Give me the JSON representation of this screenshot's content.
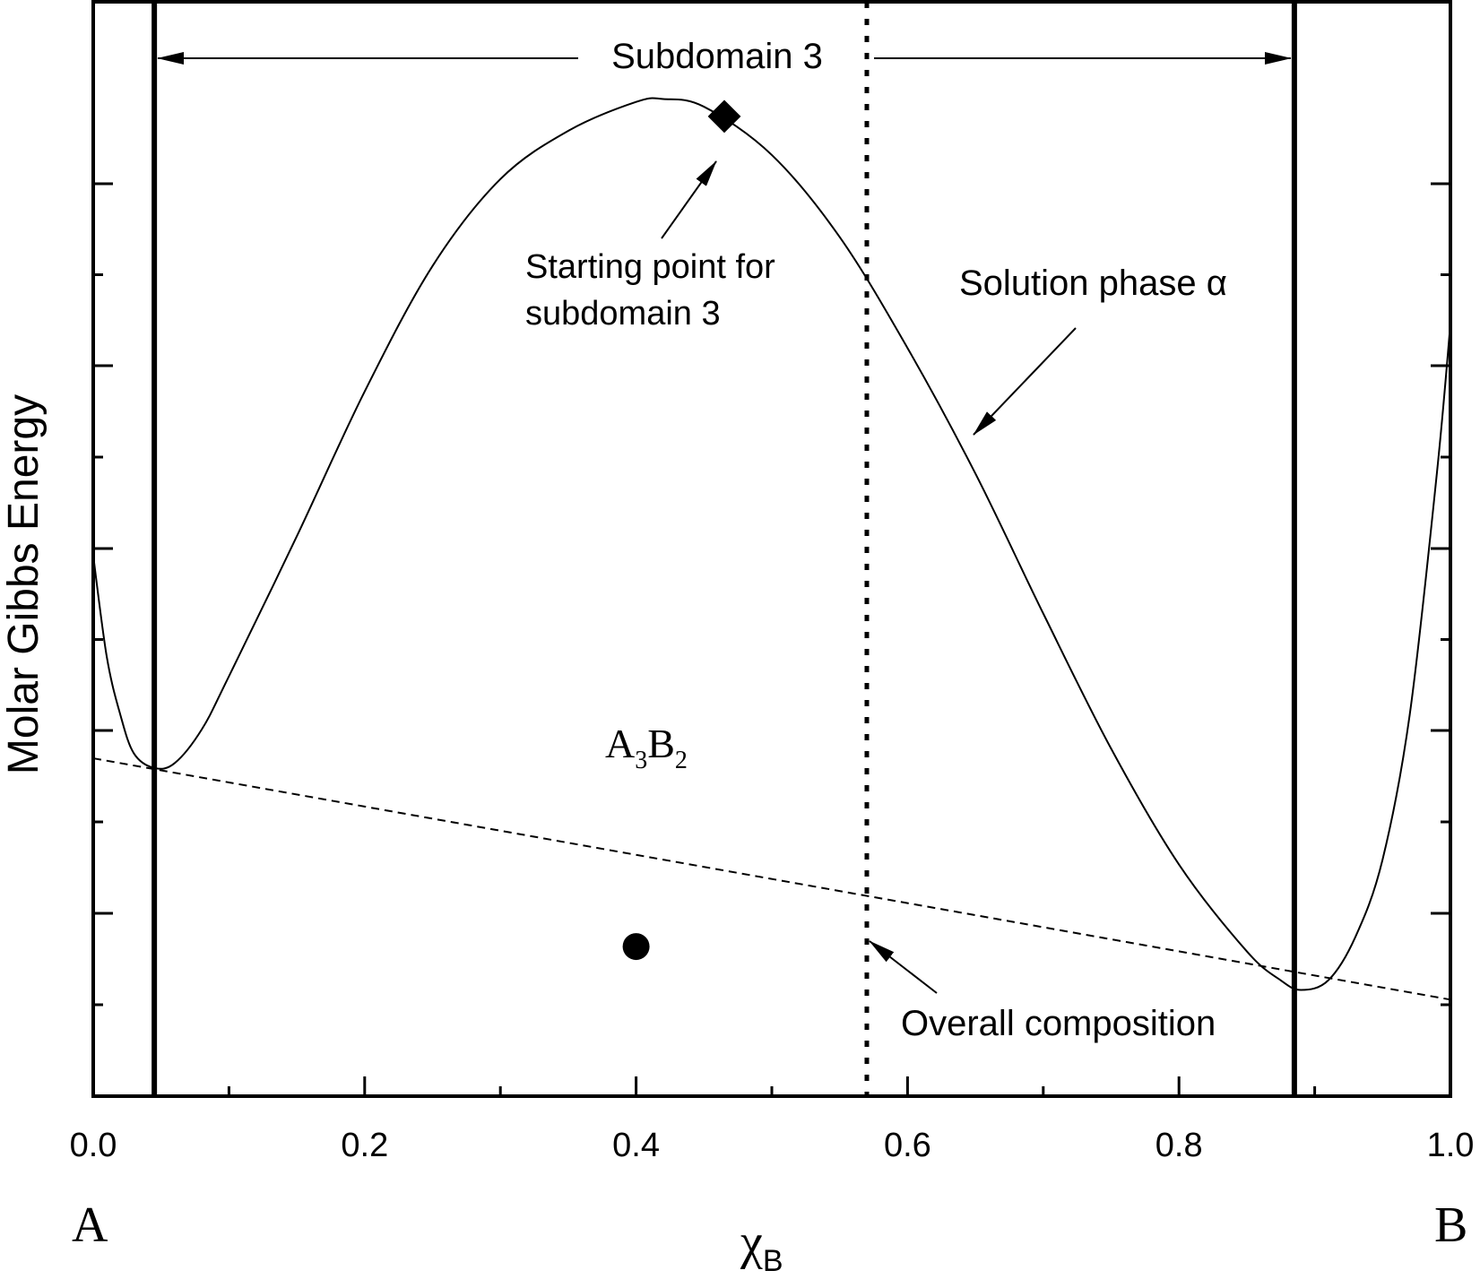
{
  "chart_data": {
    "type": "line",
    "title": "",
    "xlabel": "χ",
    "xlabel_sub": "B",
    "ylabel": "Molar Gibbs Energy",
    "xlim": [
      0.0,
      1.0
    ],
    "x_ticks": [
      "0.0",
      "0.2",
      "0.4",
      "0.6",
      "0.8",
      "1.0"
    ],
    "x_tick_values": [
      0.0,
      0.2,
      0.4,
      0.6,
      0.8,
      1.0
    ],
    "y_ticks_labeled": false,
    "ylim": [
      0.0,
      1.0
    ],
    "grid": false,
    "endpoint_labels": {
      "left": "A",
      "right": "B"
    },
    "series": [
      {
        "name": "Solution phase α",
        "style": "solid",
        "x": [
          0.0,
          0.01,
          0.02,
          0.03,
          0.045,
          0.06,
          0.08,
          0.1,
          0.15,
          0.2,
          0.25,
          0.3,
          0.35,
          0.4,
          0.42,
          0.45,
          0.5,
          0.55,
          0.6,
          0.65,
          0.7,
          0.75,
          0.8,
          0.85,
          0.875,
          0.89,
          0.91,
          0.93,
          0.95,
          0.97,
          0.99,
          1.0
        ],
        "y": [
          0.56,
          0.455,
          0.395,
          0.355,
          0.34,
          0.345,
          0.38,
          0.435,
          0.58,
          0.73,
          0.86,
          0.95,
          1.0,
          1.03,
          1.033,
          1.025,
          0.975,
          0.89,
          0.775,
          0.645,
          0.5,
          0.36,
          0.24,
          0.15,
          0.12,
          0.11,
          0.12,
          0.165,
          0.245,
          0.395,
          0.645,
          0.8
        ]
      },
      {
        "name": "",
        "style": "dashed",
        "x": [
          0.0,
          1.0
        ],
        "y": [
          0.35,
          0.1
        ]
      }
    ],
    "vertical_lines": [
      {
        "x": 0.045,
        "style": "thick"
      },
      {
        "x": 0.885,
        "style": "thick"
      },
      {
        "x": 0.57,
        "style": "dotted"
      }
    ],
    "points": [
      {
        "label": "A",
        "label_sub1": "3",
        "label_mid": "B",
        "label_sub2": "2",
        "x": 0.4,
        "y": 0.155,
        "marker": "circle"
      },
      {
        "label": "",
        "x": 0.465,
        "y": 1.015,
        "marker": "diamond"
      }
    ],
    "annotations": {
      "subdomain": "Subdomain 3",
      "starting_point_line1": "Starting point for",
      "starting_point_line2": "subdomain 3",
      "solution_phase": "Solution phase α",
      "overall_composition": "Overall composition"
    }
  }
}
